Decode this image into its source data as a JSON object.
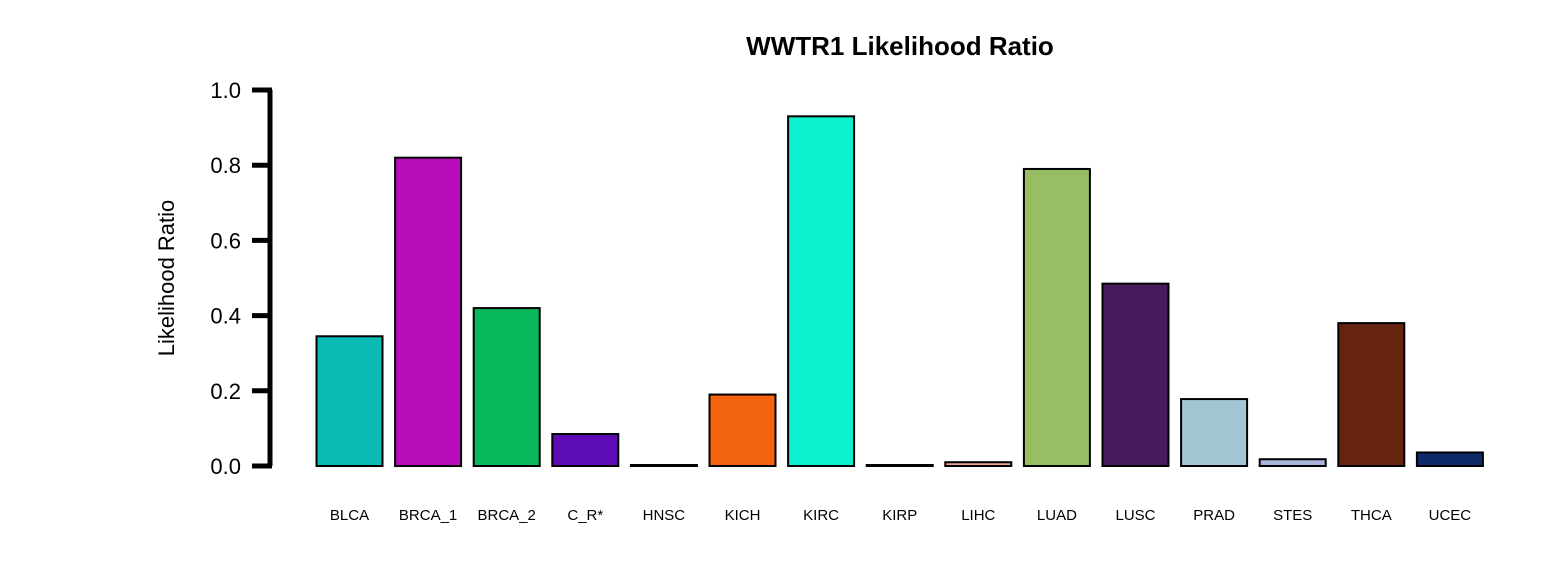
{
  "chart_data": {
    "type": "bar",
    "title": "WWTR1 Likelihood Ratio",
    "xlabel": "",
    "ylabel": "Likelihood Ratio",
    "ylim": [
      0,
      1.0
    ],
    "yticks": [
      "0.0",
      "0.2",
      "0.4",
      "0.6",
      "0.8",
      "1.0"
    ],
    "grid": false,
    "categories": [
      "BLCA",
      "BRCA_1",
      "BRCA_2",
      "C_R*",
      "HNSC",
      "KICH",
      "KIRC",
      "KIRP",
      "LIHC",
      "LUAD",
      "LUSC",
      "PRAD",
      "STES",
      "THCA",
      "UCEC"
    ],
    "values": [
      0.345,
      0.82,
      0.42,
      0.085,
      0.002,
      0.19,
      0.93,
      0.002,
      0.01,
      0.79,
      0.485,
      0.178,
      0.018,
      0.38,
      0.036
    ],
    "colors": [
      "#0ABAB5",
      "#B50DBA",
      "#08B85C",
      "#5E0CB6",
      "#3B1E6E",
      "#F2620F",
      "#0DF0D0",
      "#9A9A2A",
      "#F0A890",
      "#98BE64",
      "#461B5E",
      "#A2C6D4",
      "#A8B4DC",
      "#66240F",
      "#0F2A66"
    ]
  }
}
